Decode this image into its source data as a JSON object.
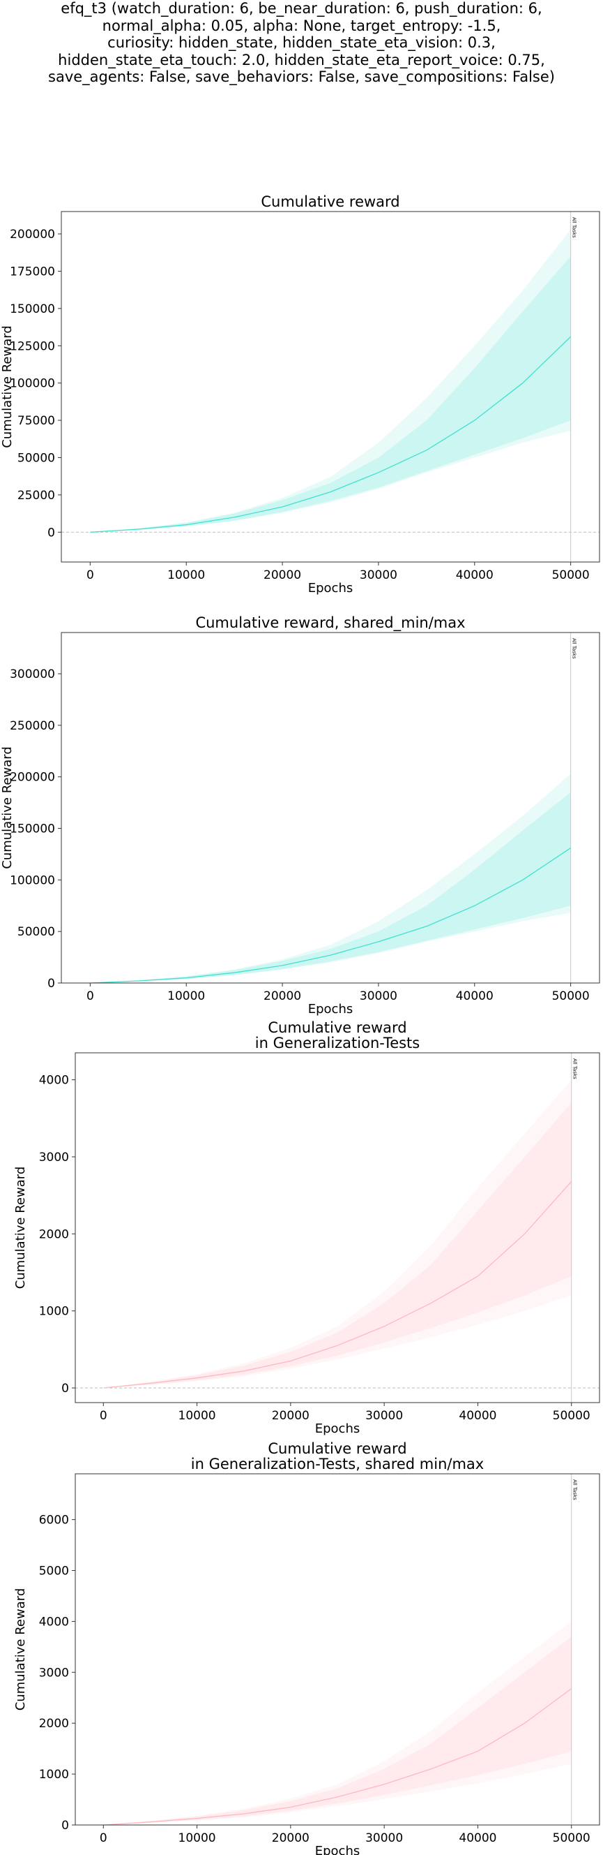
{
  "suptitle": [
    "efq_t3 (watch_duration: 6, be_near_duration: 6, push_duration: 6,",
    "normal_alpha: 0.05, alpha: None, target_entropy: -1.5,",
    "curiosity: hidden_state, hidden_state_eta_vision: 0.3,",
    "hidden_state_eta_touch: 2.0, hidden_state_eta_report_voice: 0.75,",
    "save_agents: False, save_behaviors: False, save_compositions: False)"
  ],
  "chart_data": [
    {
      "type": "line",
      "title": [
        "Cumulative reward"
      ],
      "xlabel": "Epochs",
      "ylabel": "Cumulative Reward",
      "xlim": [
        -3000,
        53000
      ],
      "ylim": [
        -20000,
        215000
      ],
      "xticks": [
        0,
        10000,
        20000,
        30000,
        40000,
        50000
      ],
      "yticks": [
        0,
        25000,
        50000,
        75000,
        100000,
        125000,
        150000,
        175000,
        200000
      ],
      "zero_line": true,
      "vline": {
        "x": 50000,
        "label": "All Tasks"
      },
      "color": "#40e0d0",
      "x": [
        0,
        5000,
        10000,
        15000,
        20000,
        25000,
        30000,
        35000,
        40000,
        45000,
        50000
      ],
      "series": [
        {
          "values": [
            0,
            2000,
            5000,
            10000,
            17000,
            27000,
            40000,
            55000,
            75000,
            100000,
            131000
          ]
        }
      ],
      "bands": [
        {
          "lower": [
            0,
            1500,
            3700,
            7500,
            13000,
            20000,
            29000,
            40000,
            50000,
            60000,
            68000
          ],
          "upper": [
            0,
            2500,
            6500,
            13000,
            23000,
            37000,
            60000,
            90000,
            125000,
            162000,
            203000
          ]
        },
        {
          "lower": [
            0,
            1600,
            3900,
            7800,
            13500,
            21000,
            30000,
            41000,
            52000,
            63000,
            75000
          ],
          "upper": [
            0,
            2400,
            6200,
            12500,
            21500,
            33000,
            50000,
            75000,
            110000,
            148000,
            185000
          ]
        }
      ]
    },
    {
      "type": "line",
      "title": [
        "Cumulative reward, shared_min/max"
      ],
      "xlabel": "Epochs",
      "ylabel": "Cumulative Reward",
      "xlim": [
        -3000,
        53000
      ],
      "ylim": [
        0,
        340000
      ],
      "xticks": [
        0,
        10000,
        20000,
        30000,
        40000,
        50000
      ],
      "yticks": [
        0,
        50000,
        100000,
        150000,
        200000,
        250000,
        300000
      ],
      "zero_line": false,
      "vline": {
        "x": 50000,
        "label": "All Tasks"
      },
      "color": "#40e0d0",
      "x": [
        0,
        5000,
        10000,
        15000,
        20000,
        25000,
        30000,
        35000,
        40000,
        45000,
        50000
      ],
      "series": [
        {
          "values": [
            0,
            2000,
            5000,
            10000,
            17000,
            27000,
            40000,
            55000,
            75000,
            100000,
            131000
          ]
        }
      ],
      "bands": [
        {
          "lower": [
            0,
            1500,
            3700,
            7500,
            13000,
            20000,
            29000,
            40000,
            50000,
            60000,
            68000
          ],
          "upper": [
            0,
            2500,
            6500,
            13000,
            23000,
            37000,
            60000,
            90000,
            125000,
            162000,
            203000
          ]
        },
        {
          "lower": [
            0,
            1600,
            3900,
            7800,
            13500,
            21000,
            30000,
            41000,
            52000,
            63000,
            75000
          ],
          "upper": [
            0,
            2400,
            6200,
            12500,
            21500,
            33000,
            50000,
            75000,
            110000,
            148000,
            185000
          ]
        }
      ]
    },
    {
      "type": "line",
      "title": [
        "Cumulative reward",
        "in Generalization-Tests"
      ],
      "xlabel": "Epochs",
      "ylabel": "Cumulative Reward",
      "xlim": [
        -3000,
        53000
      ],
      "ylim": [
        -190,
        4350
      ],
      "xticks": [
        0,
        10000,
        20000,
        30000,
        40000,
        50000
      ],
      "yticks": [
        0,
        1000,
        2000,
        3000,
        4000
      ],
      "zero_line": true,
      "vline": {
        "x": 50000,
        "label": "All Tasks"
      },
      "color": "#ffb6c1",
      "x": [
        0,
        5000,
        10000,
        15000,
        20000,
        25000,
        30000,
        35000,
        40000,
        45000,
        50000
      ],
      "series": [
        {
          "values": [
            0,
            60,
            130,
            220,
            350,
            550,
            800,
            1100,
            1450,
            2000,
            2680
          ]
        }
      ],
      "bands": [
        {
          "lower": [
            0,
            40,
            90,
            150,
            250,
            370,
            510,
            660,
            820,
            1000,
            1200
          ],
          "upper": [
            0,
            80,
            180,
            320,
            520,
            800,
            1250,
            1850,
            2600,
            3300,
            4000
          ]
        },
        {
          "lower": [
            0,
            45,
            100,
            170,
            280,
            420,
            590,
            780,
            980,
            1200,
            1450
          ],
          "upper": [
            0,
            75,
            165,
            290,
            470,
            720,
            1100,
            1600,
            2300,
            3000,
            3700
          ]
        }
      ]
    },
    {
      "type": "line",
      "title": [
        "Cumulative reward",
        "in Generalization-Tests, shared min/max"
      ],
      "xlabel": "Epochs",
      "ylabel": "Cumulative Reward",
      "xlim": [
        -3000,
        53000
      ],
      "ylim": [
        0,
        6900
      ],
      "xticks": [
        0,
        10000,
        20000,
        30000,
        40000,
        50000
      ],
      "yticks": [
        0,
        1000,
        2000,
        3000,
        4000,
        5000,
        6000
      ],
      "zero_line": false,
      "vline": {
        "x": 50000,
        "label": "All Tasks"
      },
      "color": "#ffb6c1",
      "x": [
        0,
        5000,
        10000,
        15000,
        20000,
        25000,
        30000,
        35000,
        40000,
        45000,
        50000
      ],
      "series": [
        {
          "values": [
            0,
            60,
            130,
            220,
            350,
            550,
            800,
            1100,
            1450,
            2000,
            2680
          ]
        }
      ],
      "bands": [
        {
          "lower": [
            0,
            40,
            90,
            150,
            250,
            370,
            510,
            660,
            820,
            1000,
            1200
          ],
          "upper": [
            0,
            80,
            180,
            320,
            520,
            800,
            1250,
            1850,
            2600,
            3300,
            4000
          ]
        },
        {
          "lower": [
            0,
            45,
            100,
            170,
            280,
            420,
            590,
            780,
            980,
            1200,
            1450
          ],
          "upper": [
            0,
            75,
            165,
            290,
            470,
            720,
            1100,
            1600,
            2300,
            3000,
            3700
          ]
        }
      ]
    }
  ]
}
